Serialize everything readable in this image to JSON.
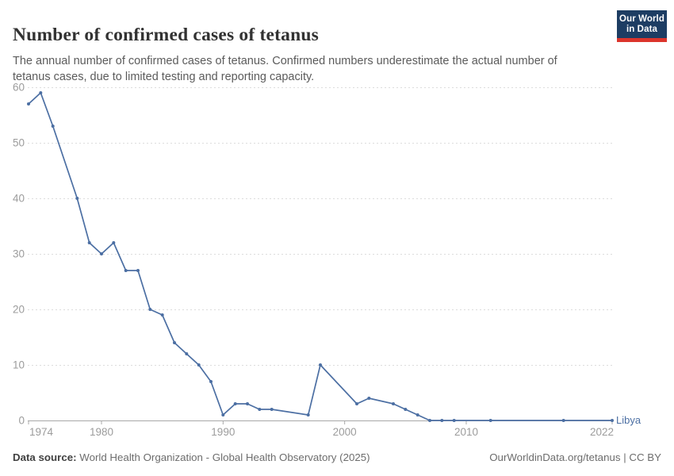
{
  "header": {
    "title": "Number of confirmed cases of tetanus",
    "subtitle": "The annual number of confirmed cases of tetanus. Confirmed numbers underestimate the actual number of tetanus cases, due to limited testing and reporting capacity."
  },
  "logo": {
    "line1": "Our World",
    "line2": "in Data",
    "bg_color": "#1d3d63",
    "bar_color": "#dc352c"
  },
  "colors": {
    "series_blue": "#4c6fa3",
    "gridline": "#dcdcdc",
    "axis": "#a8a8a8",
    "tick_label": "#9c9c9c"
  },
  "chart_data": {
    "type": "line",
    "title": "Number of confirmed cases of tetanus",
    "xlabel": "",
    "ylabel": "",
    "xlim": [
      1974,
      2022
    ],
    "ylim": [
      0,
      60
    ],
    "xticks": [
      1974,
      1980,
      1990,
      2000,
      2010,
      2022
    ],
    "yticks": [
      0,
      10,
      20,
      30,
      40,
      50,
      60
    ],
    "grid": "horizontal-dashed",
    "legend_position": "end-of-line",
    "series": [
      {
        "name": "Libya",
        "color": "#4c6fa3",
        "points": [
          [
            1974,
            57
          ],
          [
            1975,
            59
          ],
          [
            1976,
            53
          ],
          [
            1978,
            40
          ],
          [
            1979,
            32
          ],
          [
            1980,
            30
          ],
          [
            1981,
            32
          ],
          [
            1982,
            27
          ],
          [
            1983,
            27
          ],
          [
            1984,
            20
          ],
          [
            1985,
            19
          ],
          [
            1986,
            14
          ],
          [
            1987,
            12
          ],
          [
            1988,
            10
          ],
          [
            1989,
            7
          ],
          [
            1990,
            1
          ],
          [
            1991,
            3
          ],
          [
            1992,
            3
          ],
          [
            1993,
            2
          ],
          [
            1994,
            2
          ],
          [
            1997,
            1
          ],
          [
            1998,
            10
          ],
          [
            2001,
            3
          ],
          [
            2002,
            4
          ],
          [
            2004,
            3
          ],
          [
            2005,
            2
          ],
          [
            2006,
            1
          ],
          [
            2007,
            0
          ],
          [
            2008,
            0
          ],
          [
            2009,
            0
          ],
          [
            2012,
            0
          ],
          [
            2018,
            0
          ],
          [
            2022,
            0
          ]
        ]
      }
    ]
  },
  "footer": {
    "source_label": "Data source:",
    "source_text": " World Health Organization - Global Health Observatory (2025)",
    "credit_link": "OurWorldinData.org/tetanus",
    "credit_sep": " | ",
    "credit_license": "CC BY"
  }
}
